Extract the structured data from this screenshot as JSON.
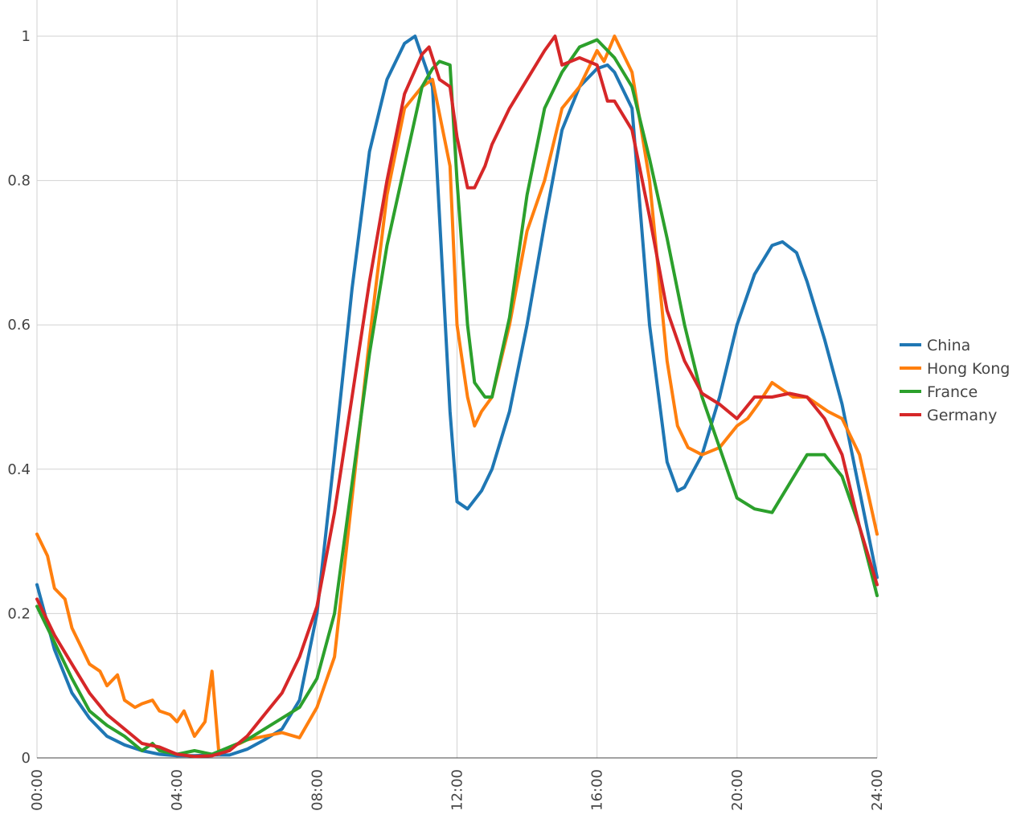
{
  "chart_data": {
    "type": "line",
    "title": "",
    "xlabel": "",
    "ylabel": "",
    "x_ticks": [
      "00:00",
      "04:00",
      "08:00",
      "12:00",
      "16:00",
      "20:00",
      "24:00"
    ],
    "y_ticks": [
      "0",
      "0.2",
      "0.4",
      "0.6",
      "0.8",
      "1"
    ],
    "xlim": [
      0,
      24
    ],
    "ylim": [
      0,
      1
    ],
    "grid": true,
    "legend_position": "right",
    "series": [
      {
        "name": "China",
        "color": "#1f77b4",
        "x": [
          0,
          0.5,
          1,
          1.5,
          2,
          2.5,
          3,
          3.5,
          4,
          4.5,
          5,
          5.5,
          6,
          6.5,
          7,
          7.5,
          8,
          8.5,
          9,
          9.5,
          10,
          10.5,
          10.8,
          11.3,
          11.8,
          12,
          12.3,
          12.7,
          13,
          13.5,
          14,
          14.5,
          15,
          15.5,
          16,
          16.3,
          16.5,
          17,
          17.5,
          18,
          18.3,
          18.5,
          19,
          19.5,
          20,
          20.5,
          21,
          21.3,
          21.7,
          22,
          22.5,
          23,
          23.5,
          24
        ],
        "y": [
          0.24,
          0.15,
          0.09,
          0.055,
          0.03,
          0.018,
          0.01,
          0.005,
          0.003,
          0.003,
          0.004,
          0.004,
          0.012,
          0.025,
          0.04,
          0.08,
          0.2,
          0.42,
          0.65,
          0.84,
          0.94,
          0.99,
          1.0,
          0.93,
          0.48,
          0.355,
          0.345,
          0.37,
          0.4,
          0.48,
          0.6,
          0.74,
          0.87,
          0.93,
          0.955,
          0.96,
          0.95,
          0.9,
          0.6,
          0.41,
          0.37,
          0.375,
          0.42,
          0.5,
          0.6,
          0.67,
          0.71,
          0.715,
          0.7,
          0.66,
          0.58,
          0.49,
          0.37,
          0.25
        ]
      },
      {
        "name": "Hong Kong",
        "color": "#ff7f0e",
        "x": [
          0,
          0.3,
          0.5,
          0.8,
          1,
          1.3,
          1.5,
          1.8,
          2,
          2.3,
          2.5,
          2.8,
          3,
          3.3,
          3.5,
          3.8,
          4,
          4.2,
          4.5,
          4.8,
          5,
          5.2,
          5.5,
          5.8,
          6,
          6.5,
          7,
          7.5,
          8,
          8.5,
          9,
          9.5,
          10,
          10.5,
          11,
          11.3,
          11.8,
          12,
          12.3,
          12.5,
          12.7,
          13,
          13.5,
          14,
          14.5,
          15,
          15.5,
          16,
          16.2,
          16.5,
          17,
          17.5,
          18,
          18.3,
          18.6,
          19,
          19.5,
          20,
          20.3,
          20.6,
          21,
          21.3,
          21.6,
          22,
          22.3,
          22.6,
          23,
          23.5,
          24
        ],
        "y": [
          0.31,
          0.28,
          0.235,
          0.22,
          0.18,
          0.15,
          0.13,
          0.12,
          0.1,
          0.115,
          0.08,
          0.07,
          0.075,
          0.08,
          0.065,
          0.06,
          0.05,
          0.065,
          0.03,
          0.05,
          0.12,
          0.005,
          0.015,
          0.02,
          0.025,
          0.03,
          0.035,
          0.028,
          0.07,
          0.14,
          0.36,
          0.58,
          0.78,
          0.9,
          0.93,
          0.94,
          0.82,
          0.6,
          0.5,
          0.46,
          0.48,
          0.5,
          0.6,
          0.73,
          0.8,
          0.9,
          0.93,
          0.98,
          0.965,
          1.0,
          0.95,
          0.8,
          0.55,
          0.46,
          0.43,
          0.42,
          0.43,
          0.46,
          0.47,
          0.49,
          0.52,
          0.51,
          0.5,
          0.5,
          0.49,
          0.48,
          0.47,
          0.42,
          0.31
        ]
      },
      {
        "name": "France",
        "color": "#2ca02c",
        "x": [
          0,
          0.5,
          1,
          1.5,
          2,
          2.5,
          3,
          3.3,
          3.5,
          4,
          4.5,
          5,
          5.5,
          6,
          6.5,
          7,
          7.5,
          8,
          8.5,
          9,
          9.5,
          10,
          10.5,
          11,
          11.3,
          11.5,
          11.8,
          12,
          12.3,
          12.5,
          12.8,
          13,
          13.5,
          14,
          14.5,
          15,
          15.5,
          16,
          16.5,
          17,
          17.5,
          18,
          18.5,
          19,
          19.5,
          20,
          20.5,
          21,
          21.5,
          22,
          22.5,
          23,
          23.5,
          24
        ],
        "y": [
          0.21,
          0.16,
          0.11,
          0.065,
          0.045,
          0.03,
          0.01,
          0.02,
          0.01,
          0.005,
          0.01,
          0.005,
          0.015,
          0.025,
          0.04,
          0.055,
          0.07,
          0.11,
          0.2,
          0.38,
          0.56,
          0.71,
          0.82,
          0.93,
          0.955,
          0.965,
          0.96,
          0.8,
          0.6,
          0.52,
          0.5,
          0.5,
          0.61,
          0.78,
          0.9,
          0.95,
          0.985,
          0.995,
          0.97,
          0.93,
          0.83,
          0.72,
          0.6,
          0.5,
          0.43,
          0.36,
          0.345,
          0.34,
          0.38,
          0.42,
          0.42,
          0.39,
          0.32,
          0.225
        ]
      },
      {
        "name": "Germany",
        "color": "#d62728",
        "x": [
          0,
          0.5,
          1,
          1.5,
          2,
          2.5,
          3,
          3.5,
          4,
          4.5,
          5,
          5.5,
          6,
          6.5,
          7,
          7.5,
          8,
          8.5,
          9,
          9.5,
          10,
          10.5,
          11,
          11.2,
          11.5,
          11.8,
          12,
          12.3,
          12.5,
          12.8,
          13,
          13.5,
          14,
          14.5,
          14.8,
          15,
          15.5,
          16,
          16.3,
          16.5,
          17,
          17.5,
          18,
          18.5,
          19,
          19.5,
          20,
          20.5,
          21,
          21.5,
          22,
          22.5,
          23,
          23.5,
          24
        ],
        "y": [
          0.22,
          0.17,
          0.13,
          0.09,
          0.06,
          0.04,
          0.02,
          0.015,
          0.005,
          0.002,
          0.003,
          0.01,
          0.03,
          0.06,
          0.09,
          0.14,
          0.21,
          0.34,
          0.5,
          0.66,
          0.8,
          0.92,
          0.975,
          0.985,
          0.94,
          0.93,
          0.86,
          0.79,
          0.79,
          0.82,
          0.85,
          0.9,
          0.94,
          0.98,
          1.0,
          0.96,
          0.97,
          0.96,
          0.91,
          0.91,
          0.87,
          0.75,
          0.62,
          0.55,
          0.505,
          0.49,
          0.47,
          0.5,
          0.5,
          0.505,
          0.5,
          0.47,
          0.42,
          0.32,
          0.24
        ]
      }
    ]
  }
}
